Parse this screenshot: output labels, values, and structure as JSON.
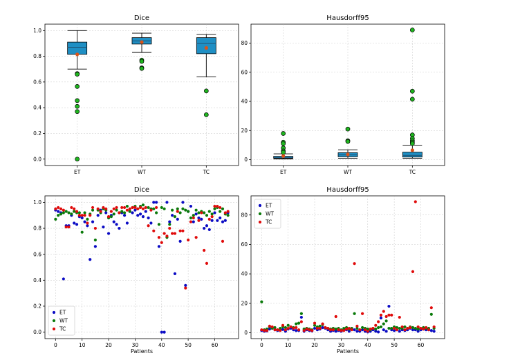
{
  "colors": {
    "box_fill": "#1f8fc4",
    "median": "#1f4f6f",
    "mean": "#d9541a",
    "outlier": "#1fb51f",
    "ET": "#0b0bc4",
    "WT": "#0a7a0a",
    "TC": "#e00b0b"
  },
  "chart_data": [
    {
      "id": "box-dice",
      "type": "box",
      "title": "Dice",
      "xlabel": "",
      "ylabel": "",
      "ylim": [
        -0.05,
        1.05
      ],
      "yticks": [
        0.0,
        0.2,
        0.4,
        0.6,
        0.8,
        1.0
      ],
      "ytick_labels": [
        "0.0",
        "0.2",
        "0.4",
        "0.6",
        "0.8",
        "1.0"
      ],
      "categories": [
        "ET",
        "WT",
        "TC"
      ],
      "boxes": [
        {
          "label": "ET",
          "whisker_low": 0.7,
          "q1": 0.815,
          "median": 0.87,
          "q3": 0.91,
          "whisker_high": 1.0,
          "mean": 0.815,
          "outliers": [
            0.665,
            0.66,
            0.565,
            0.455,
            0.41,
            0.37,
            0.0
          ]
        },
        {
          "label": "WT",
          "whisker_low": 0.83,
          "q1": 0.895,
          "median": 0.92,
          "q3": 0.945,
          "whisker_high": 0.98,
          "mean": 0.91,
          "outliers": [
            0.77,
            0.76,
            0.71,
            0.705
          ]
        },
        {
          "label": "TC",
          "whisker_low": 0.64,
          "q1": 0.82,
          "median": 0.9,
          "q3": 0.945,
          "whisker_high": 0.97,
          "mean": 0.865,
          "outliers": [
            0.53,
            0.345
          ]
        }
      ]
    },
    {
      "id": "box-hd",
      "type": "box",
      "title": "Hausdorff95",
      "xlabel": "",
      "ylabel": "",
      "ylim": [
        -4,
        93
      ],
      "yticks": [
        0,
        20,
        40,
        60,
        80
      ],
      "ytick_labels": [
        "0",
        "20",
        "40",
        "60",
        "80"
      ],
      "categories": [
        "ET",
        "WT",
        "TC"
      ],
      "boxes": [
        {
          "label": "ET",
          "whisker_low": 0.5,
          "q1": 1.0,
          "median": 1.6,
          "q3": 2.3,
          "whisker_high": 4.0,
          "mean": 2.5,
          "outliers": [
            18.0,
            12.0,
            11.0,
            8.0,
            6.0,
            5.0
          ]
        },
        {
          "label": "WT",
          "whisker_low": 1.0,
          "q1": 2.0,
          "median": 3.3,
          "q3": 4.8,
          "whisker_high": 6.8,
          "mean": 3.6,
          "outliers": [
            21.0,
            13.0,
            12.5
          ]
        },
        {
          "label": "TC",
          "whisker_low": 1.0,
          "q1": 1.8,
          "median": 3.0,
          "q3": 5.2,
          "whisker_high": 10.0,
          "mean": 6.5,
          "outliers": [
            89.0,
            47.0,
            41.5,
            17.0,
            14.5,
            13.0,
            12.0,
            11.0
          ]
        }
      ]
    },
    {
      "id": "scatter-dice",
      "type": "scatter",
      "title": "Dice",
      "xlabel": "Patients",
      "ylabel": "",
      "xlim": [
        -4,
        69
      ],
      "ylim": [
        -0.05,
        1.05
      ],
      "xticks": [
        0,
        10,
        20,
        30,
        40,
        50,
        60
      ],
      "xtick_labels": [
        "0",
        "10",
        "20",
        "30",
        "40",
        "50",
        "60"
      ],
      "yticks": [
        0.0,
        0.2,
        0.4,
        0.6,
        0.8,
        1.0
      ],
      "ytick_labels": [
        "0.0",
        "0.2",
        "0.4",
        "0.6",
        "0.8",
        "1.0"
      ],
      "legend": {
        "position": "lower-left",
        "entries": [
          "ET",
          "WT",
          "TC"
        ]
      },
      "series": [
        {
          "name": "ET",
          "x": [
            0,
            1,
            2,
            3,
            4,
            5,
            6,
            7,
            8,
            9,
            10,
            11,
            12,
            13,
            14,
            15,
            16,
            17,
            18,
            19,
            20,
            21,
            22,
            23,
            24,
            25,
            26,
            27,
            28,
            29,
            30,
            31,
            32,
            33,
            34,
            35,
            36,
            37,
            38,
            39,
            40,
            41,
            42,
            43,
            44,
            45,
            46,
            47,
            48,
            49,
            50,
            51,
            52,
            53,
            54,
            55,
            56,
            57,
            58,
            59,
            60,
            61,
            62,
            63,
            64,
            65
          ],
          "y": [
            0.94,
            0.93,
            0.92,
            0.41,
            0.82,
            0.82,
            0.9,
            0.84,
            0.83,
            0.89,
            0.88,
            0.85,
            0.82,
            0.56,
            0.85,
            0.66,
            0.9,
            0.94,
            0.81,
            0.92,
            0.76,
            0.9,
            0.85,
            0.83,
            0.8,
            0.92,
            0.9,
            0.84,
            0.93,
            0.92,
            0.94,
            0.9,
            0.91,
            0.89,
            0.93,
            0.88,
            0.84,
            1.0,
            1.0,
            0.66,
            0.0,
            0.0,
            1.0,
            0.85,
            0.9,
            0.45,
            0.87,
            0.7,
            1.0,
            0.36,
            0.93,
            0.97,
            0.85,
            0.91,
            0.88,
            0.87,
            0.8,
            0.82,
            0.79,
            0.86,
            0.92,
            0.86,
            0.88,
            0.85,
            0.86,
            0.92
          ]
        },
        {
          "name": "WT",
          "x": [
            0,
            1,
            2,
            3,
            4,
            5,
            6,
            7,
            8,
            9,
            10,
            11,
            12,
            13,
            14,
            15,
            16,
            17,
            18,
            19,
            20,
            21,
            22,
            23,
            24,
            25,
            26,
            27,
            28,
            29,
            30,
            31,
            32,
            33,
            34,
            35,
            36,
            37,
            38,
            39,
            40,
            41,
            42,
            43,
            44,
            45,
            46,
            47,
            48,
            49,
            50,
            51,
            52,
            53,
            54,
            55,
            56,
            57,
            58,
            59,
            60,
            61,
            62,
            63,
            64,
            65
          ],
          "y": [
            0.87,
            0.9,
            0.91,
            0.92,
            0.93,
            0.92,
            0.91,
            0.93,
            0.92,
            0.92,
            0.77,
            0.92,
            0.87,
            0.91,
            0.94,
            0.71,
            0.94,
            0.92,
            0.95,
            0.94,
            0.88,
            0.89,
            0.91,
            0.94,
            0.92,
            0.93,
            0.92,
            0.97,
            0.93,
            0.96,
            0.97,
            0.95,
            0.97,
            0.98,
            0.96,
            0.96,
            0.95,
            0.95,
            0.92,
            0.83,
            0.96,
            0.95,
            0.73,
            0.83,
            0.94,
            0.89,
            0.95,
            0.92,
            0.95,
            0.94,
            0.93,
            0.88,
            0.9,
            0.94,
            0.92,
            0.93,
            0.92,
            0.9,
            0.93,
            0.91,
            0.95,
            0.96,
            0.93,
            0.95,
            0.91,
            0.9
          ]
        },
        {
          "name": "TC",
          "x": [
            0,
            1,
            2,
            3,
            4,
            5,
            6,
            7,
            8,
            9,
            10,
            11,
            12,
            13,
            14,
            15,
            16,
            17,
            18,
            19,
            20,
            21,
            22,
            23,
            24,
            25,
            26,
            27,
            28,
            29,
            30,
            31,
            32,
            33,
            34,
            35,
            36,
            37,
            38,
            39,
            40,
            41,
            42,
            43,
            44,
            45,
            46,
            47,
            48,
            49,
            50,
            51,
            52,
            53,
            54,
            55,
            56,
            57,
            58,
            59,
            60,
            61,
            62,
            63,
            64,
            65
          ],
          "y": [
            0.95,
            0.96,
            0.95,
            0.94,
            0.81,
            0.81,
            0.96,
            0.95,
            0.93,
            0.9,
            0.9,
            0.9,
            0.84,
            0.9,
            0.96,
            0.8,
            0.95,
            0.93,
            0.96,
            0.95,
            0.89,
            0.93,
            0.95,
            0.96,
            0.92,
            0.96,
            0.96,
            0.94,
            0.95,
            0.96,
            0.96,
            0.95,
            0.96,
            0.95,
            0.96,
            0.82,
            0.94,
            0.78,
            0.96,
            0.73,
            0.69,
            0.76,
            0.74,
            0.8,
            0.76,
            0.76,
            0.93,
            0.78,
            0.78,
            0.34,
            0.71,
            0.85,
            0.88,
            0.73,
            0.86,
            0.92,
            0.63,
            0.53,
            0.87,
            0.89,
            0.97,
            0.97,
            0.96,
            0.7,
            0.92,
            0.93
          ]
        }
      ]
    },
    {
      "id": "scatter-hd",
      "type": "scatter",
      "title": "Hausdorff95",
      "xlabel": "Patients",
      "ylabel": "",
      "xlim": [
        -4,
        69
      ],
      "ylim": [
        -4,
        93
      ],
      "xticks": [
        0,
        10,
        20,
        30,
        40,
        50,
        60
      ],
      "xtick_labels": [
        "0",
        "10",
        "20",
        "30",
        "40",
        "50",
        "60"
      ],
      "yticks": [
        0,
        20,
        40,
        60,
        80
      ],
      "ytick_labels": [
        "0",
        "20",
        "40",
        "60",
        "80"
      ],
      "legend": {
        "position": "top-left",
        "entries": [
          "ET",
          "WT",
          "TC"
        ]
      },
      "series": [
        {
          "name": "ET",
          "x": [
            0,
            1,
            2,
            3,
            4,
            5,
            6,
            7,
            8,
            9,
            10,
            11,
            12,
            13,
            14,
            15,
            16,
            17,
            18,
            19,
            20,
            21,
            22,
            23,
            24,
            25,
            26,
            27,
            28,
            29,
            30,
            31,
            32,
            33,
            34,
            35,
            36,
            37,
            38,
            39,
            40,
            41,
            42,
            43,
            44,
            45,
            46,
            47,
            48,
            49,
            50,
            51,
            52,
            53,
            54,
            55,
            56,
            57,
            58,
            59,
            60,
            61,
            62,
            63,
            64,
            65
          ],
          "y": [
            1.5,
            1.0,
            1.2,
            2.5,
            3.0,
            2.0,
            1.5,
            1.8,
            2.2,
            1.0,
            2.5,
            3.0,
            2.0,
            1.5,
            1.5,
            10.5,
            1.0,
            2.0,
            1.5,
            1.2,
            3.0,
            2.0,
            2.5,
            3.5,
            3.0,
            2.0,
            1.0,
            1.5,
            1.0,
            1.5,
            1.0,
            2.0,
            2.0,
            1.0,
            2.5,
            2.0,
            1.0,
            1.0,
            2.0,
            1.0,
            0.5,
            1.0,
            2.0,
            1.0,
            0.5,
            10.0,
            2.0,
            1.0,
            18.0,
            2.0,
            1.5,
            2.0,
            1.0,
            2.0,
            1.5,
            2.0,
            3.0,
            2.0,
            2.0,
            1.0,
            2.0,
            2.5,
            2.0,
            2.0,
            1.5,
            1.0
          ]
        },
        {
          "name": "WT",
          "x": [
            0,
            1,
            2,
            3,
            4,
            5,
            6,
            7,
            8,
            9,
            10,
            11,
            12,
            13,
            14,
            15,
            16,
            17,
            18,
            19,
            20,
            21,
            22,
            23,
            24,
            25,
            26,
            27,
            28,
            29,
            30,
            31,
            32,
            33,
            34,
            35,
            36,
            37,
            38,
            39,
            40,
            41,
            42,
            43,
            44,
            45,
            46,
            47,
            48,
            49,
            50,
            51,
            52,
            53,
            54,
            55,
            56,
            57,
            58,
            59,
            60,
            61,
            62,
            63,
            64,
            65
          ],
          "y": [
            21.0,
            2.0,
            2.5,
            4.0,
            3.0,
            3.5,
            2.0,
            3.0,
            4.0,
            3.5,
            5.0,
            4.0,
            3.5,
            6.0,
            6.5,
            13.0,
            2.5,
            3.0,
            2.5,
            2.0,
            5.0,
            4.0,
            4.5,
            5.5,
            3.5,
            3.0,
            2.5,
            3.0,
            2.5,
            3.0,
            2.0,
            3.0,
            3.5,
            2.5,
            3.0,
            13.0,
            3.0,
            2.0,
            3.5,
            3.0,
            2.5,
            2.0,
            3.0,
            2.5,
            3.5,
            4.0,
            6.0,
            8.0,
            3.0,
            3.0,
            4.0,
            3.5,
            3.0,
            3.0,
            4.0,
            3.0,
            4.0,
            3.5,
            3.0,
            2.5,
            3.0,
            3.5,
            3.0,
            3.0,
            12.5,
            3.0
          ]
        },
        {
          "name": "TC",
          "x": [
            0,
            1,
            2,
            3,
            4,
            5,
            6,
            7,
            8,
            9,
            10,
            11,
            12,
            13,
            14,
            15,
            16,
            17,
            18,
            19,
            20,
            21,
            22,
            23,
            24,
            25,
            26,
            27,
            28,
            29,
            30,
            31,
            32,
            33,
            34,
            35,
            36,
            37,
            38,
            39,
            40,
            41,
            42,
            43,
            44,
            45,
            46,
            47,
            48,
            49,
            50,
            51,
            52,
            53,
            54,
            55,
            56,
            57,
            58,
            59,
            60,
            61,
            62,
            63,
            64,
            65
          ],
          "y": [
            2.0,
            1.5,
            1.5,
            4.5,
            4.0,
            2.0,
            2.0,
            1.5,
            5.0,
            2.0,
            3.0,
            4.0,
            3.0,
            3.5,
            2.0,
            7.5,
            1.5,
            2.5,
            2.0,
            1.5,
            6.5,
            3.0,
            3.0,
            6.0,
            3.5,
            3.0,
            2.0,
            2.0,
            11.0,
            2.0,
            1.5,
            1.5,
            2.5,
            3.0,
            2.0,
            47.0,
            4.5,
            2.0,
            13.0,
            2.0,
            1.0,
            2.5,
            3.0,
            5.0,
            7.5,
            12.0,
            14.5,
            11.0,
            12.0,
            12.0,
            3.0,
            2.0,
            10.5,
            4.0,
            2.0,
            3.0,
            3.5,
            41.5,
            89.0,
            4.0,
            3.0,
            2.5,
            3.5,
            2.0,
            17.0,
            4.0
          ]
        }
      ]
    }
  ]
}
